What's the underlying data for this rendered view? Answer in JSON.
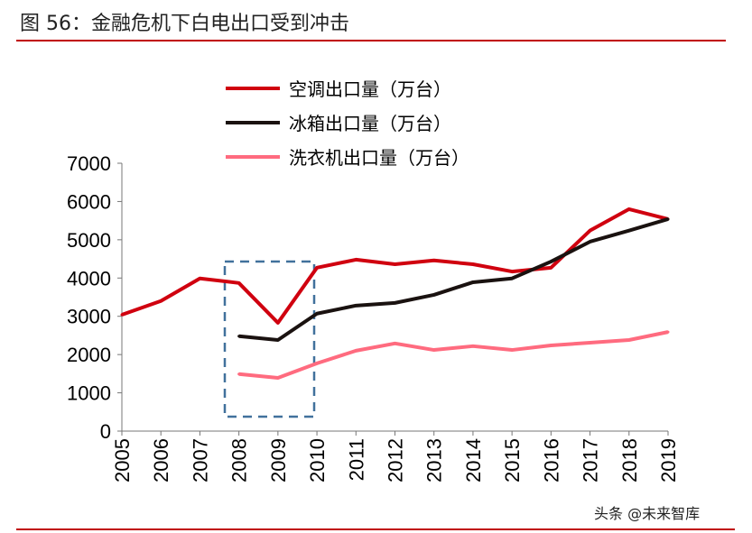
{
  "title": "图 56：金融危机下白电出口受到冲击",
  "watermark": "头条 @未来智库",
  "chart_data": {
    "type": "line",
    "title": "",
    "xlabel": "",
    "ylabel": "",
    "x": [
      "2005",
      "2006",
      "2007",
      "2008",
      "2009",
      "2010",
      "2011",
      "2012",
      "2013",
      "2014",
      "2015",
      "2016",
      "2017",
      "2018",
      "2019"
    ],
    "ylim": [
      0,
      7000
    ],
    "yticks": [
      0,
      1000,
      2000,
      3000,
      4000,
      5000,
      6000,
      7000
    ],
    "grid": false,
    "legend_position": "top",
    "annotation": "dashed box highlighting 2008-2009",
    "series": [
      {
        "name": "空调出口量（万台）",
        "color": "#d0000f",
        "values": [
          3040,
          3400,
          3990,
          3870,
          2830,
          4270,
          4480,
          4360,
          4460,
          4360,
          4170,
          4270,
          5240,
          5800,
          5540
        ]
      },
      {
        "name": "冰箱出口量（万台）",
        "color": "#1a1210",
        "values": [
          null,
          null,
          null,
          2480,
          2380,
          3070,
          3280,
          3350,
          3560,
          3890,
          3990,
          4430,
          4950,
          5240,
          5540
        ]
      },
      {
        "name": "洗衣机出口量（万台）",
        "color": "#ff6b7f",
        "values": [
          null,
          null,
          null,
          1490,
          1390,
          1770,
          2100,
          2290,
          2120,
          2220,
          2120,
          2240,
          2310,
          2380,
          2590
        ]
      }
    ]
  }
}
